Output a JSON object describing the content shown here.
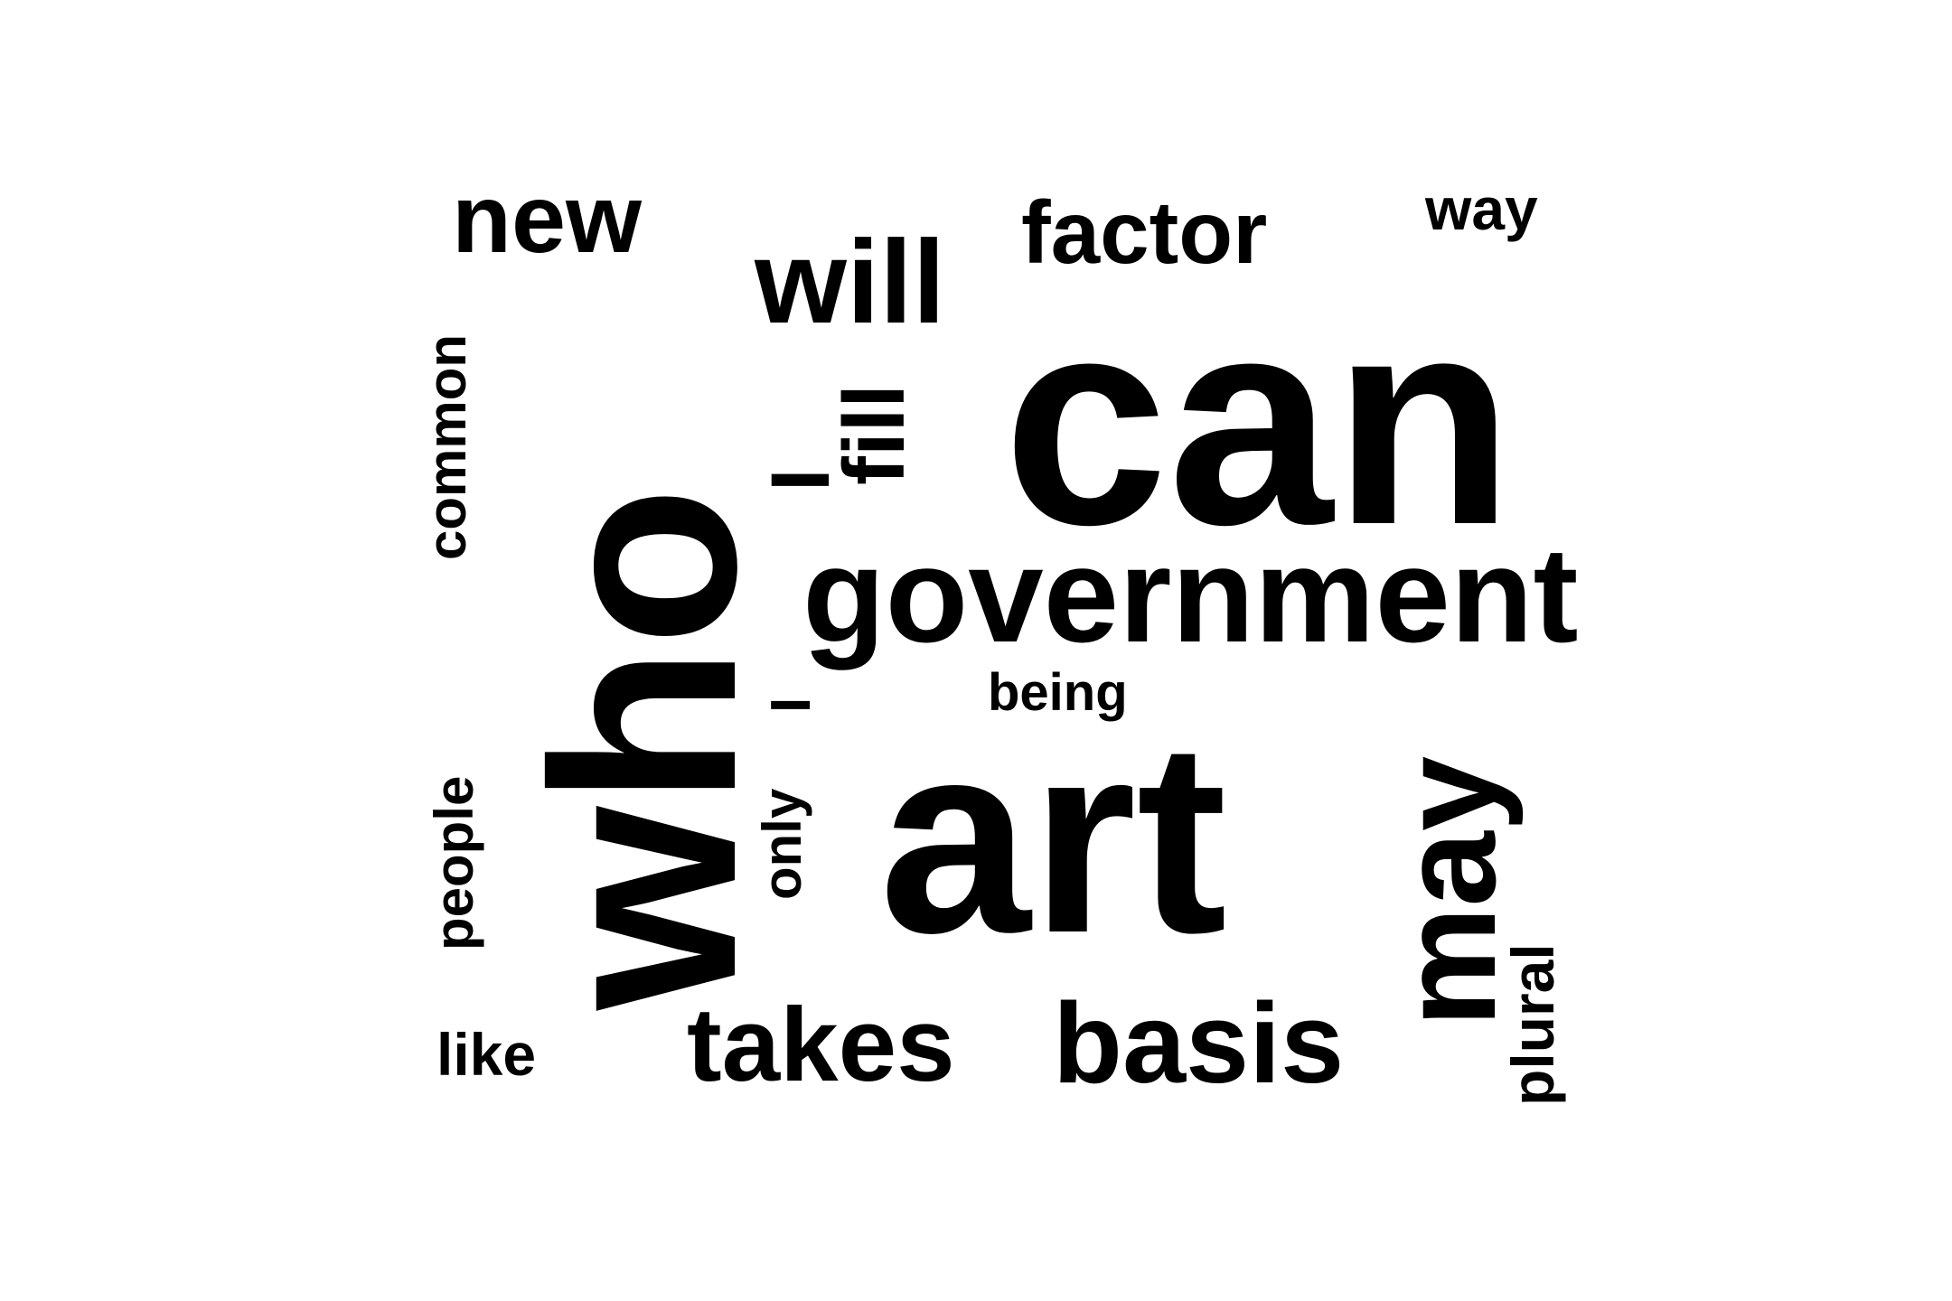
{
  "words": [
    {
      "id": "who",
      "text": "who",
      "vertical": true
    },
    {
      "id": "can",
      "text": "can",
      "vertical": false
    },
    {
      "id": "art",
      "text": "art",
      "vertical": false
    },
    {
      "id": "government",
      "text": "government",
      "vertical": false
    },
    {
      "id": "may",
      "text": "may",
      "vertical": true
    },
    {
      "id": "will",
      "text": "will",
      "vertical": false
    },
    {
      "id": "basis",
      "text": "basis",
      "vertical": false
    },
    {
      "id": "takes",
      "text": "takes",
      "vertical": false
    },
    {
      "id": "new",
      "text": "new",
      "vertical": false
    },
    {
      "id": "factor",
      "text": "factor",
      "vertical": false
    },
    {
      "id": "fill",
      "text": "fill",
      "vertical": true
    },
    {
      "id": "i-upper",
      "text": "I",
      "vertical": true
    },
    {
      "id": "i-lower",
      "text": "I",
      "vertical": true
    },
    {
      "id": "common",
      "text": "common",
      "vertical": true
    },
    {
      "id": "people",
      "text": "people",
      "vertical": true
    },
    {
      "id": "only",
      "text": "only",
      "vertical": true
    },
    {
      "id": "plural",
      "text": "plural",
      "vertical": true
    },
    {
      "id": "way",
      "text": "way",
      "vertical": false
    },
    {
      "id": "like",
      "text": "like",
      "vertical": false
    },
    {
      "id": "being",
      "text": "being",
      "vertical": false
    }
  ],
  "colors": {
    "text": "#000000",
    "background": "#ffffff"
  }
}
